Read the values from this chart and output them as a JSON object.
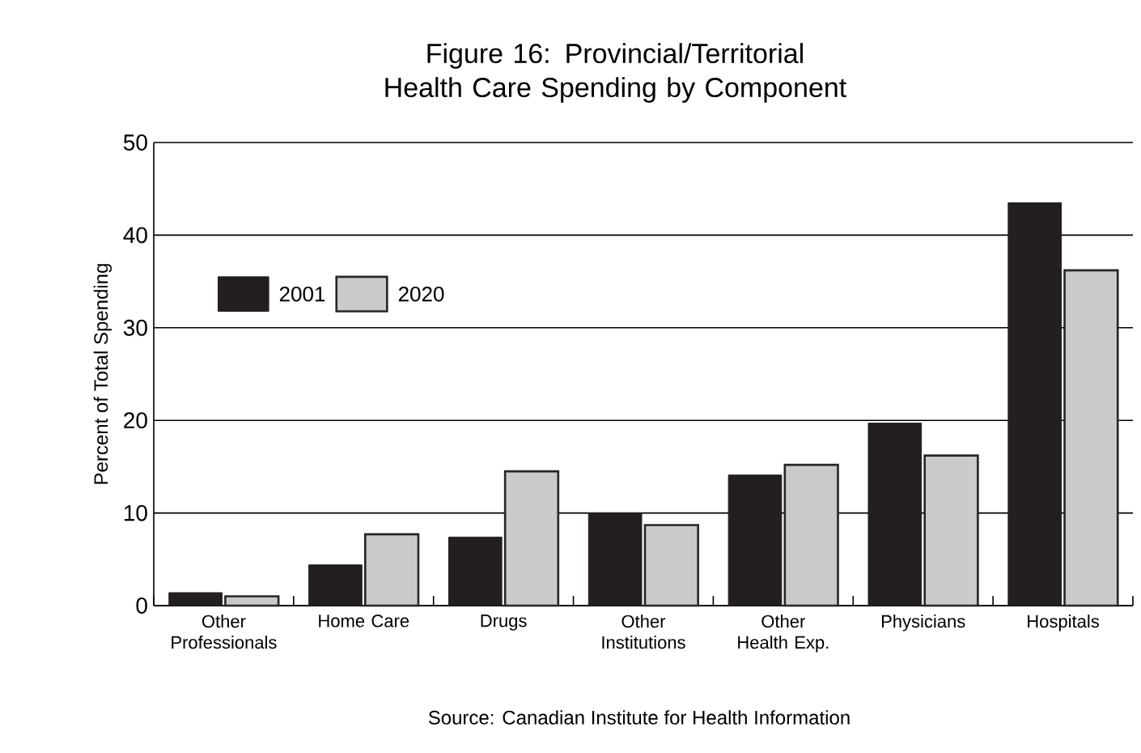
{
  "chart_data": {
    "type": "bar",
    "title": "Figure 16: Provincial/Territorial Health Care Spending by Component",
    "ylabel": "Percent of Total Spending",
    "categories": [
      "Other Professionals",
      "Home Care",
      "Drugs",
      "Other Institutions",
      "Other Health Exp.",
      "Physicians",
      "Hospitals"
    ],
    "series": [
      {
        "name": "2001",
        "color": "#231f20",
        "values": [
          1.4,
          4.4,
          7.4,
          10.0,
          14.1,
          19.7,
          43.5
        ]
      },
      {
        "name": "2020",
        "color": "#c8cacc",
        "values": [
          1.0,
          7.7,
          14.5,
          8.7,
          15.2,
          16.2,
          36.2
        ]
      }
    ],
    "ylim": [
      0,
      50
    ],
    "yticks": [
      0,
      10,
      20,
      30,
      40,
      50
    ],
    "grid": "y",
    "legend": "top left",
    "annotations": [
      "Source: Canadian Institute for Health Information"
    ]
  }
}
